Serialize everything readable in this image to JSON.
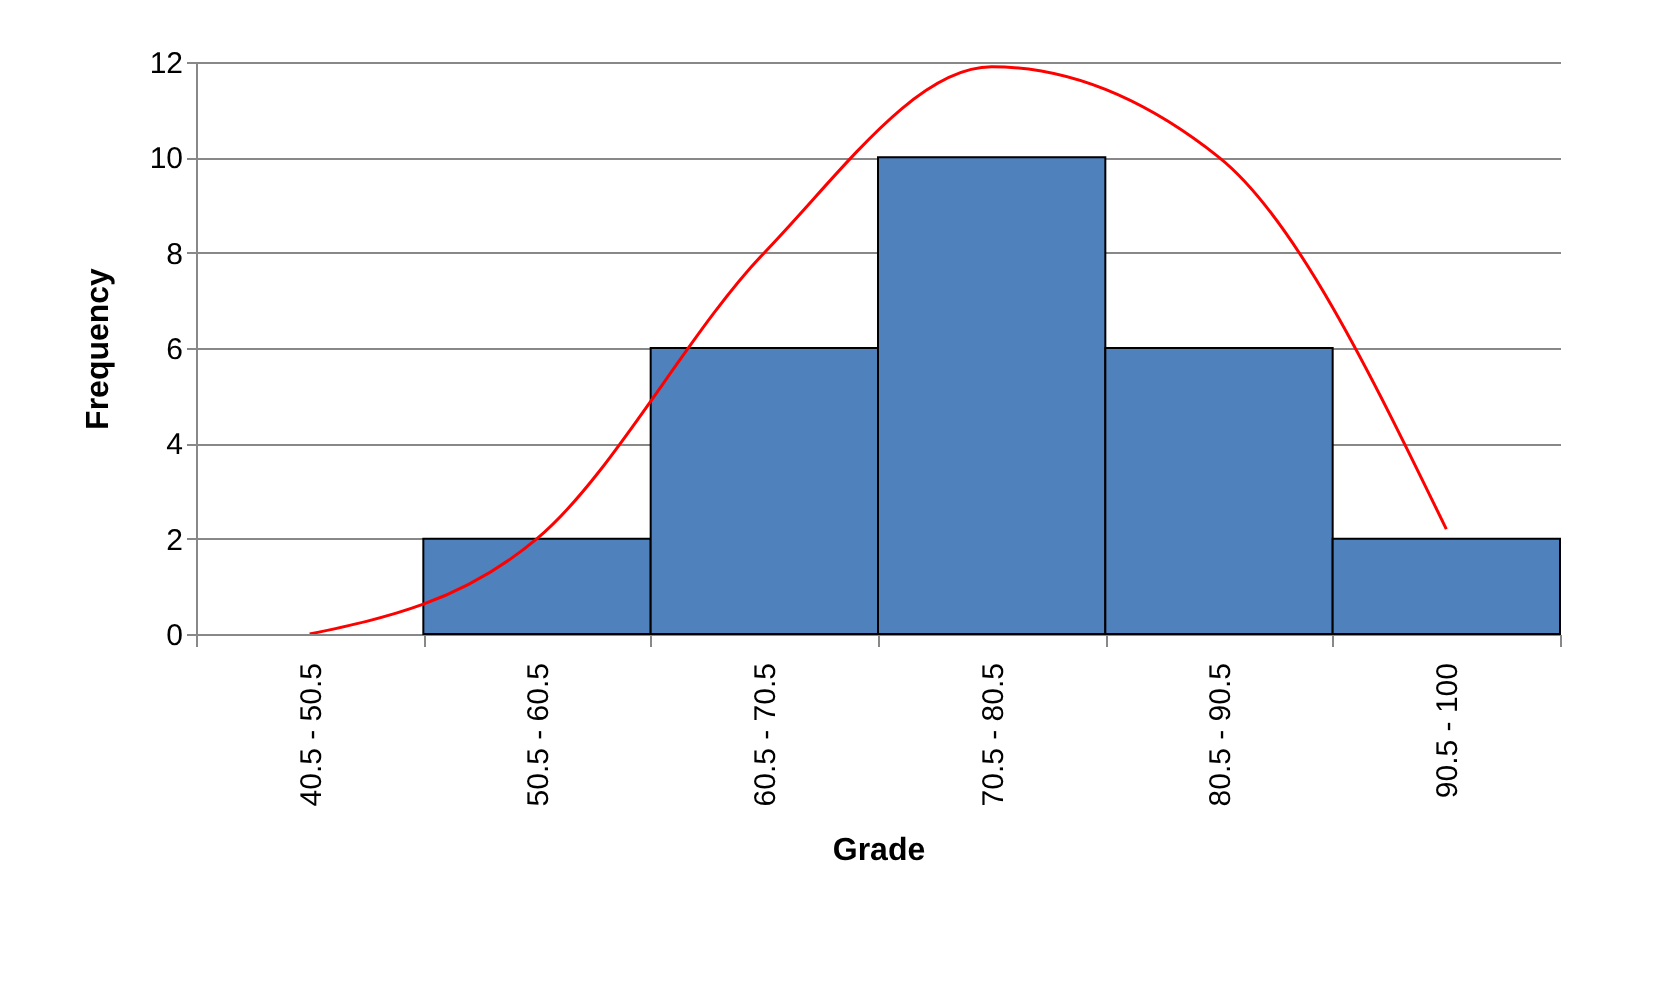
{
  "chart_data": {
    "type": "bar",
    "xlabel": "Grade",
    "ylabel": "Frequency",
    "categories": [
      "40.5 - 50.5",
      "50.5 - 60.5",
      "60.5 - 70.5",
      "70.5 - 80.5",
      "80.5 - 90.5",
      "90.5 - 100"
    ],
    "series": [
      {
        "color": "#4f81bd",
        "values": [
          0,
          2,
          6,
          10,
          6,
          2
        ]
      },
      {
        "type": "line",
        "color": "#ff0000",
        "values": [
          0,
          2,
          8,
          11.9,
          10,
          2.2
        ]
      }
    ],
    "ylim": [
      0,
      12
    ],
    "yticks": [
      0,
      2,
      4,
      6,
      8,
      10,
      12
    ],
    "grid": "y",
    "marker": "none",
    "line_style": "solid"
  }
}
